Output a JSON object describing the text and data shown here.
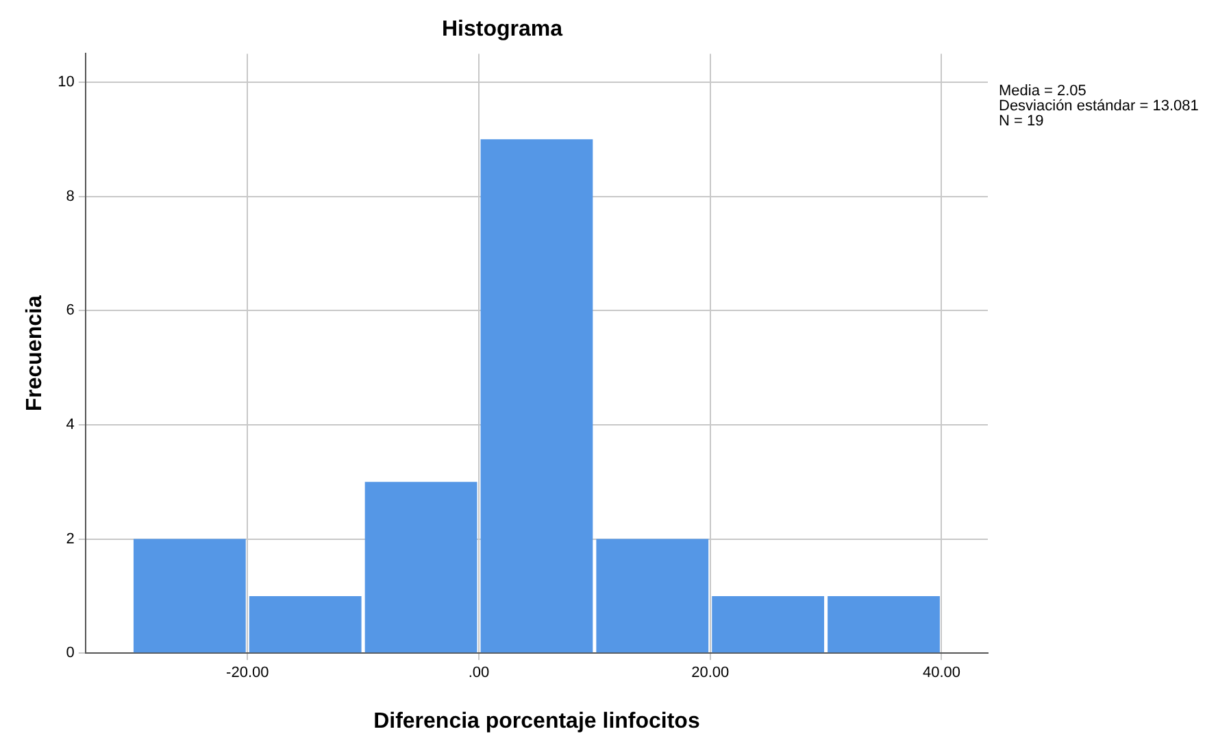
{
  "chart_data": {
    "type": "histogram",
    "title": "Histograma",
    "xlabel": "Diferencia porcentaje linfocitos",
    "ylabel": "Frecuencia",
    "bins": [
      -30,
      -20,
      -10,
      0,
      10,
      20,
      30,
      40
    ],
    "values": [
      2,
      1,
      3,
      9,
      2,
      1,
      1
    ],
    "color": "#5597e6",
    "xlim": [
      -34,
      44
    ],
    "xticks": [
      {
        "value": -20,
        "label": "-20.00"
      },
      {
        "value": 0,
        "label": ".00"
      },
      {
        "value": 20,
        "label": "20.00"
      },
      {
        "value": 40,
        "label": "40.00"
      }
    ],
    "ylim": [
      0,
      10.5
    ],
    "yticks": [
      0,
      2,
      4,
      6,
      8,
      10
    ],
    "grid": true,
    "annotations": [
      "Media = 2.05",
      "Desviación estándar = 13.081",
      "N = 19"
    ]
  }
}
